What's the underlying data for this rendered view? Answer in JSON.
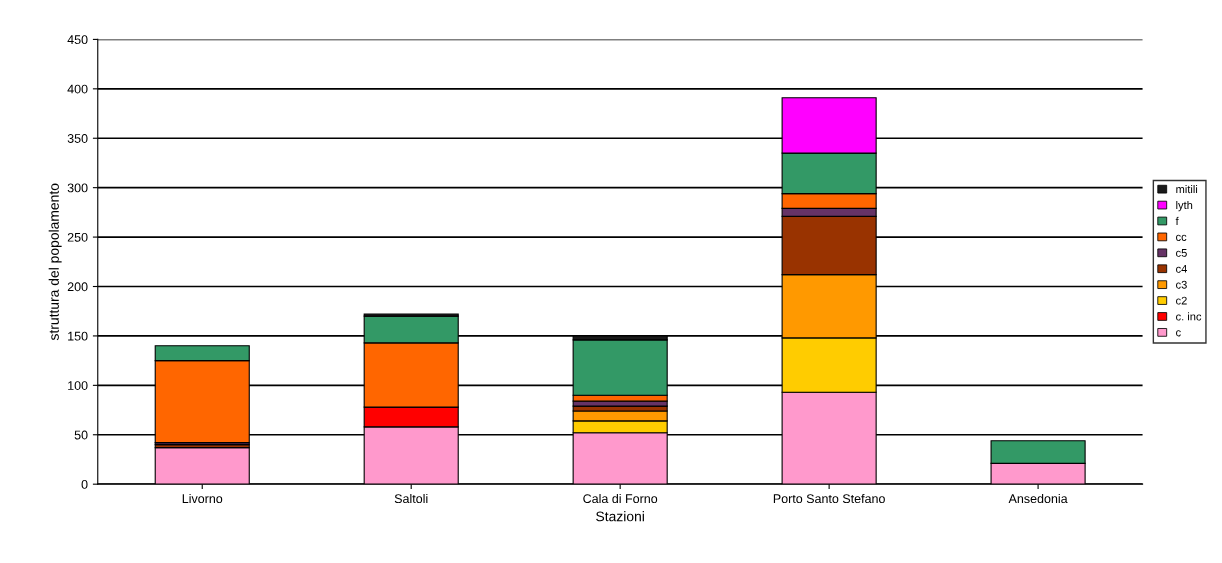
{
  "chart_data": {
    "type": "bar",
    "stacked": true,
    "xlabel": "Stazioni",
    "ylabel": "struttura del popolamento",
    "categories": [
      "Livorno",
      "Saltoli",
      "Cala di Forno",
      "Porto Santo Stefano",
      "Ansedonia"
    ],
    "series": [
      {
        "name": "c",
        "color": "#ff99cc",
        "values": [
          37,
          58,
          52,
          93,
          21
        ]
      },
      {
        "name": "c. inc",
        "color": "#ff0000",
        "values": [
          0,
          20,
          0,
          0,
          0
        ]
      },
      {
        "name": "c2",
        "color": "#ffcc00",
        "values": [
          0,
          0,
          12,
          55,
          0
        ]
      },
      {
        "name": "c3",
        "color": "#ff9900",
        "values": [
          0,
          0,
          10,
          64,
          0
        ]
      },
      {
        "name": "c4",
        "color": "#993300",
        "values": [
          3,
          0,
          5,
          59,
          0
        ]
      },
      {
        "name": "c5",
        "color": "#663366",
        "values": [
          2,
          0,
          5,
          8,
          0
        ]
      },
      {
        "name": "cc",
        "color": "#ff6600",
        "values": [
          83,
          65,
          6,
          15,
          0
        ]
      },
      {
        "name": "f",
        "color": "#339966",
        "values": [
          15,
          27,
          56,
          41,
          23
        ]
      },
      {
        "name": "lyth",
        "color": "#ff00ff",
        "values": [
          0,
          0,
          0,
          56,
          0
        ]
      },
      {
        "name": "mitili",
        "color": "#1a1a1a",
        "values": [
          0,
          2,
          4,
          0,
          0
        ]
      }
    ],
    "ylim": [
      0,
      450
    ],
    "yticks": [
      0,
      50,
      100,
      150,
      200,
      250,
      300,
      350,
      400,
      450
    ],
    "grid": "y",
    "legend": "right"
  }
}
